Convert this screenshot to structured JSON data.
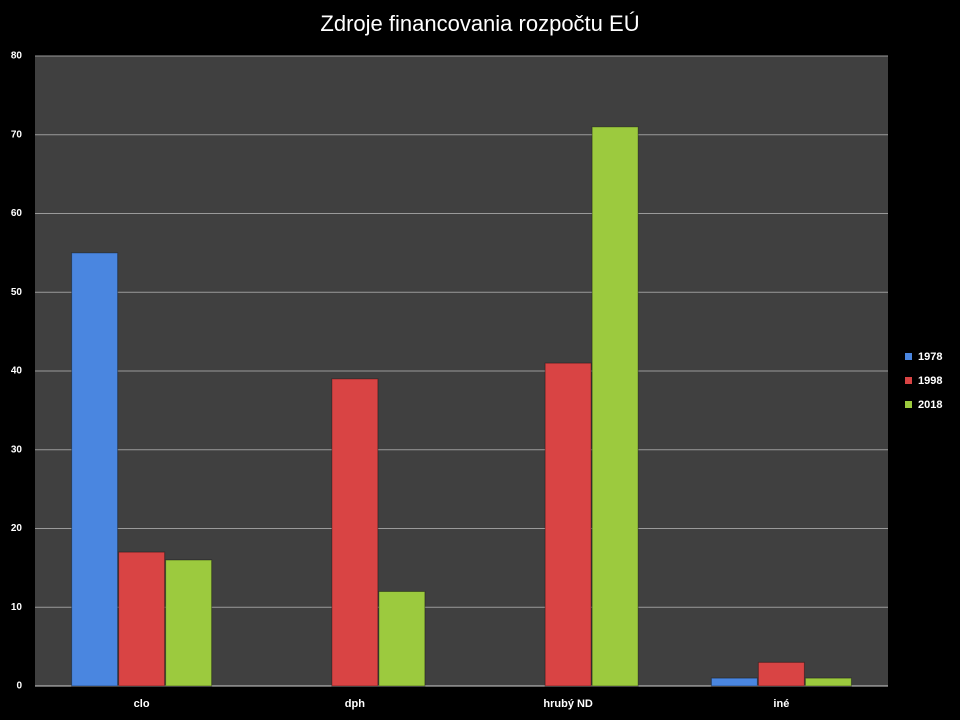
{
  "chart_data": {
    "type": "bar",
    "title": "Zdroje financovania rozpočtu EÚ",
    "categories": [
      "clo",
      "dph",
      "hrubý ND",
      "iné"
    ],
    "series": [
      {
        "name": "1978",
        "color": "#4a86e0",
        "values": [
          55,
          null,
          null,
          1
        ]
      },
      {
        "name": "1998",
        "color": "#d94444",
        "values": [
          17,
          39,
          41,
          3
        ]
      },
      {
        "name": "2018",
        "color": "#9cca3e",
        "values": [
          16,
          12,
          71,
          1
        ]
      }
    ],
    "ylim": [
      0,
      80
    ],
    "yticks": [
      0,
      10,
      20,
      30,
      40,
      50,
      60,
      70,
      80
    ],
    "grid": true,
    "legend": "right"
  }
}
